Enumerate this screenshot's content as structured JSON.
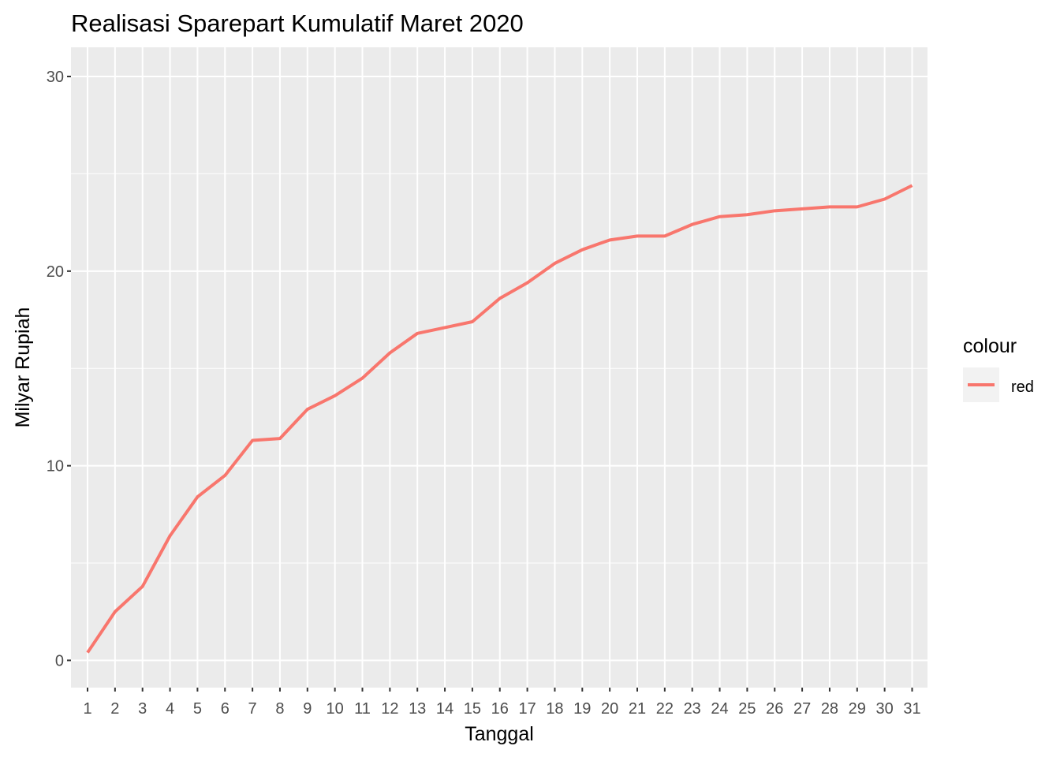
{
  "chart_data": {
    "type": "line",
    "title": "Realisasi Sparepart Kumulatif Maret 2020",
    "xlabel": "Tanggal",
    "ylabel": "Milyar Rupiah",
    "x": [
      "1",
      "2",
      "3",
      "4",
      "5",
      "6",
      "7",
      "8",
      "9",
      "10",
      "11",
      "12",
      "13",
      "14",
      "15",
      "16",
      "17",
      "18",
      "19",
      "20",
      "21",
      "22",
      "23",
      "24",
      "25",
      "26",
      "27",
      "28",
      "29",
      "30",
      "31"
    ],
    "y_ticks": [
      "0",
      "10",
      "20",
      "30"
    ],
    "ylim": [
      -1.4,
      31.5
    ],
    "grid": true,
    "legend": {
      "title": "colour",
      "position": "right",
      "entries": [
        "red"
      ]
    },
    "series": [
      {
        "name": "red",
        "color": "#F8766D",
        "values": [
          0.4,
          2.5,
          3.8,
          6.4,
          8.4,
          9.5,
          11.3,
          11.4,
          12.9,
          13.6,
          14.5,
          15.8,
          16.8,
          17.1,
          17.4,
          18.6,
          19.4,
          20.4,
          21.1,
          21.6,
          21.8,
          21.8,
          22.4,
          22.8,
          22.9,
          23.1,
          23.2,
          23.3,
          23.3,
          23.7,
          24.4
        ]
      }
    ]
  },
  "colors": {
    "panel_background": "#EBEBEB",
    "grid_major": "#FFFFFF",
    "legend_key_background": "#F2F2F2",
    "tick_text": "#4D4D4D",
    "tick_mark": "#333333"
  }
}
